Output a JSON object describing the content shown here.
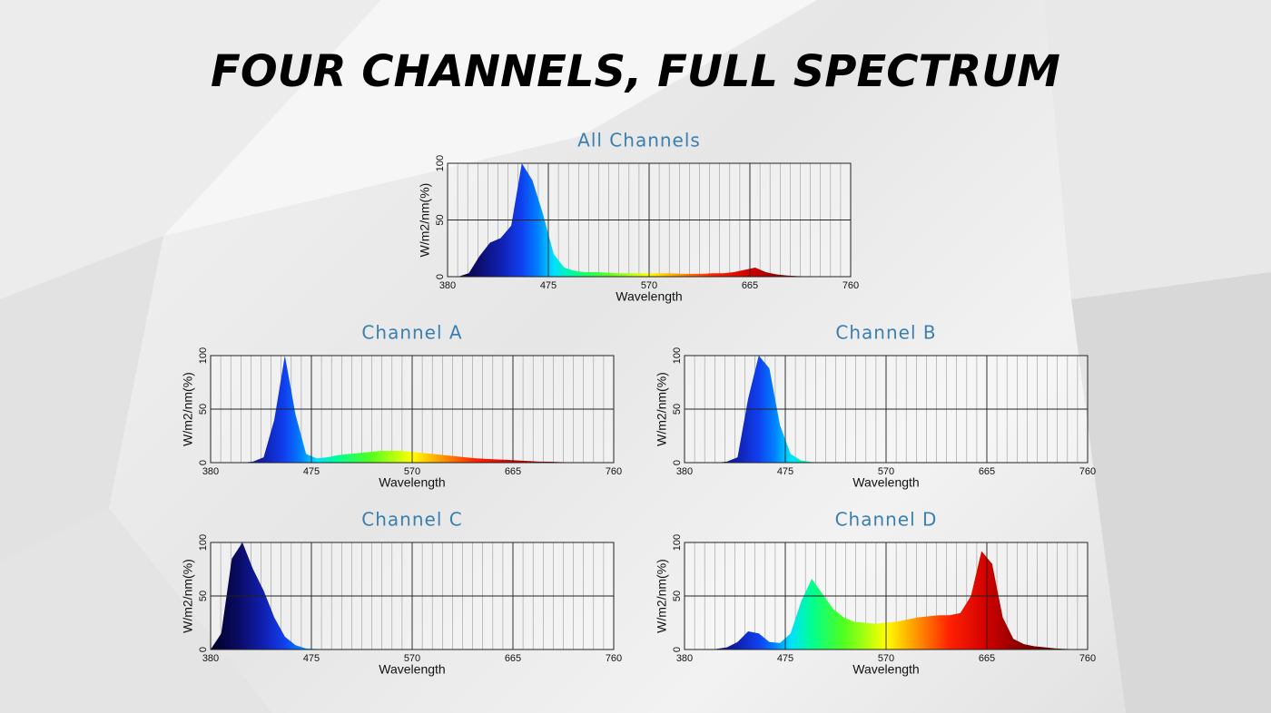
{
  "title": "FOUR CHANNELS, FULL SPECTRUM",
  "chart_data": [
    {
      "type": "area",
      "title": "All  Channels",
      "xlabel": "Wavelength",
      "ylabel": "W/m2/nm(%)",
      "x": [
        380,
        390,
        400,
        410,
        420,
        430,
        440,
        450,
        460,
        470,
        480,
        490,
        500,
        510,
        520,
        530,
        540,
        550,
        560,
        570,
        580,
        590,
        600,
        610,
        620,
        630,
        640,
        650,
        660,
        670,
        680,
        690,
        700,
        710,
        720,
        730,
        740,
        750,
        760
      ],
      "values": [
        0,
        0,
        3,
        18,
        30,
        34,
        45,
        100,
        85,
        55,
        20,
        8,
        5,
        4,
        4,
        3.5,
        3,
        3,
        3,
        3,
        3,
        3,
        2.5,
        2.5,
        2.5,
        3,
        3,
        4,
        6,
        8,
        4,
        2,
        1,
        0.5,
        0.3,
        0.2,
        0.1,
        0,
        0
      ],
      "xlim": [
        380,
        760
      ],
      "xticks": [
        380,
        475,
        570,
        665,
        760
      ],
      "ylim": [
        0,
        100
      ],
      "yticks": [
        0,
        50,
        100
      ],
      "grid": true
    },
    {
      "type": "area",
      "title": "Channel  A",
      "xlabel": "Wavelength",
      "ylabel": "W/m2/nm(%)",
      "x": [
        380,
        390,
        400,
        410,
        420,
        430,
        440,
        450,
        460,
        470,
        480,
        490,
        500,
        510,
        520,
        530,
        540,
        550,
        560,
        570,
        580,
        590,
        600,
        610,
        620,
        630,
        640,
        650,
        660,
        670,
        680,
        690,
        700,
        710,
        720,
        730,
        740,
        750,
        760
      ],
      "values": [
        0,
        0,
        0,
        0,
        1,
        5,
        40,
        100,
        45,
        8,
        4,
        5,
        7,
        8,
        9,
        10,
        11,
        11,
        11,
        10,
        9,
        8,
        7,
        6,
        5,
        4,
        3.5,
        3,
        2.5,
        2,
        1.5,
        1,
        0.8,
        0.5,
        0.3,
        0.2,
        0.1,
        0,
        0
      ],
      "xlim": [
        380,
        760
      ],
      "xticks": [
        380,
        475,
        570,
        665,
        760
      ],
      "ylim": [
        0,
        100
      ],
      "yticks": [
        0,
        50,
        100
      ],
      "grid": true
    },
    {
      "type": "area",
      "title": "Channel  B",
      "xlabel": "Wavelength",
      "ylabel": "W/m2/nm(%)",
      "x": [
        380,
        390,
        400,
        410,
        420,
        430,
        440,
        450,
        460,
        470,
        480,
        490,
        500,
        510,
        520,
        530,
        540,
        550,
        560,
        570,
        580,
        590,
        600,
        610,
        620,
        630,
        640,
        650,
        660,
        670,
        680,
        690,
        700,
        710,
        720,
        730,
        740,
        750,
        760
      ],
      "values": [
        0,
        0,
        0,
        0,
        1,
        5,
        60,
        100,
        88,
        35,
        8,
        2,
        0.5,
        0,
        0,
        0,
        0,
        0,
        0,
        0,
        0,
        0,
        0,
        0,
        0,
        0,
        0,
        0,
        0,
        0,
        0,
        0,
        0,
        0,
        0,
        0,
        0,
        0,
        0
      ],
      "xlim": [
        380,
        760
      ],
      "xticks": [
        380,
        475,
        570,
        665,
        760
      ],
      "ylim": [
        0,
        100
      ],
      "yticks": [
        0,
        50,
        100
      ],
      "grid": true
    },
    {
      "type": "area",
      "title": "Channel  C",
      "xlabel": "Wavelength",
      "ylabel": "W/m2/nm(%)",
      "x": [
        380,
        390,
        400,
        410,
        420,
        430,
        440,
        450,
        460,
        470,
        480,
        490,
        500,
        510,
        520,
        530,
        540,
        550,
        560,
        570,
        580,
        590,
        600,
        610,
        620,
        630,
        640,
        650,
        660,
        670,
        680,
        690,
        700,
        710,
        720,
        730,
        740,
        750,
        760
      ],
      "values": [
        0,
        15,
        85,
        100,
        75,
        55,
        30,
        12,
        4,
        1,
        0.5,
        0,
        0,
        0,
        0,
        0,
        0,
        0,
        0,
        0,
        0,
        0,
        0,
        0,
        0,
        0,
        0,
        0,
        0,
        0,
        0,
        0,
        0,
        0,
        0,
        0,
        0,
        0,
        0
      ],
      "xlim": [
        380,
        760
      ],
      "xticks": [
        380,
        475,
        570,
        665,
        760
      ],
      "ylim": [
        0,
        100
      ],
      "yticks": [
        0,
        50,
        100
      ],
      "grid": true
    },
    {
      "type": "area",
      "title": "Channel  D",
      "xlabel": "Wavelength",
      "ylabel": "W/m2/nm(%)",
      "x": [
        380,
        390,
        400,
        410,
        420,
        430,
        440,
        450,
        460,
        470,
        480,
        490,
        500,
        510,
        520,
        530,
        540,
        550,
        560,
        570,
        580,
        590,
        600,
        610,
        620,
        630,
        640,
        650,
        660,
        670,
        680,
        690,
        700,
        710,
        720,
        730,
        740,
        750,
        760
      ],
      "values": [
        0,
        0,
        0,
        0.5,
        2,
        7,
        17,
        15,
        7,
        6,
        15,
        45,
        66,
        52,
        38,
        30,
        26,
        25,
        24,
        25,
        26,
        28,
        30,
        31,
        32,
        32,
        34,
        50,
        92,
        80,
        30,
        10,
        5,
        3,
        2,
        1,
        0.5,
        0.2,
        0
      ],
      "xlim": [
        380,
        760
      ],
      "xticks": [
        380,
        475,
        570,
        665,
        760
      ],
      "ylim": [
        0,
        100
      ],
      "yticks": [
        0,
        50,
        100
      ],
      "grid": true
    }
  ]
}
